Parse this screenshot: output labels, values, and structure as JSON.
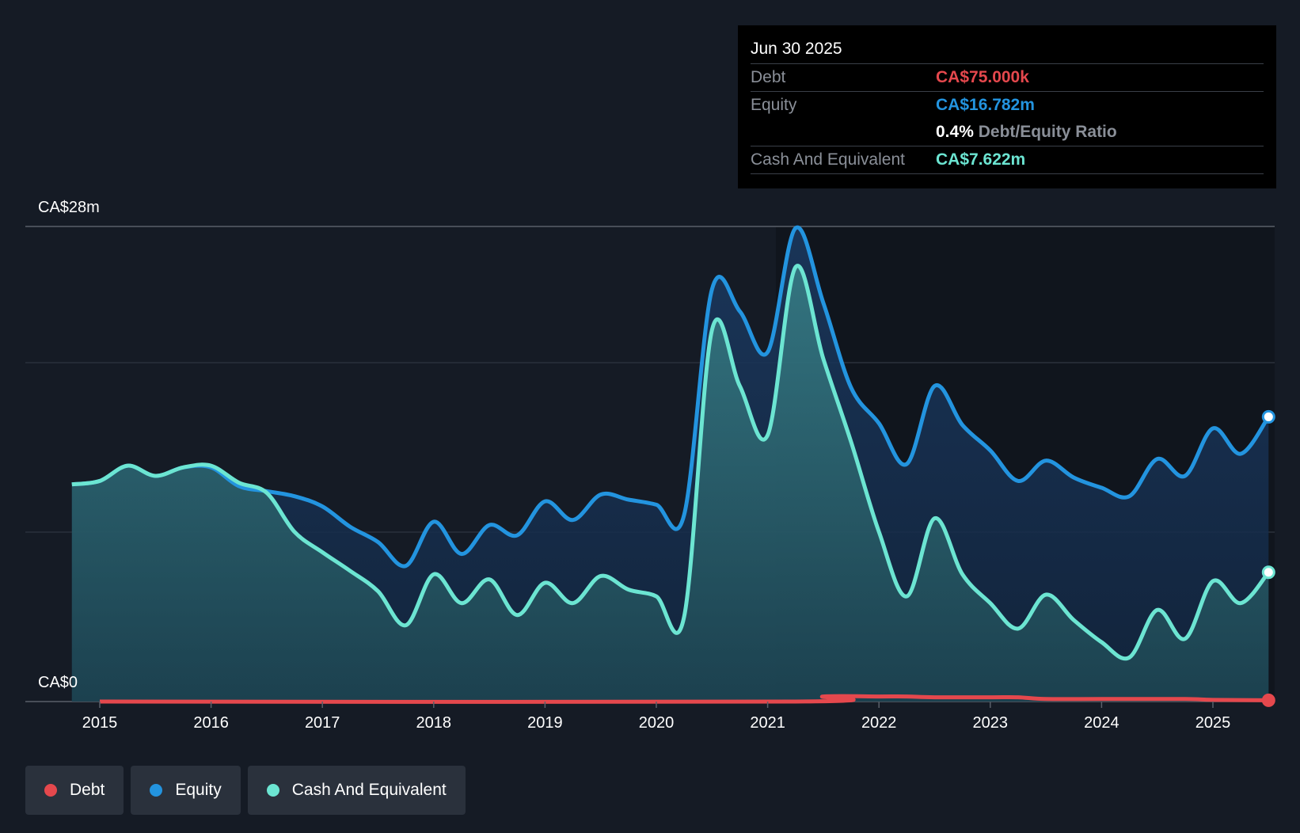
{
  "tooltip": {
    "date": "Jun 30 2025",
    "debt_label": "Debt",
    "debt_value": "CA$75.000k",
    "equity_label": "Equity",
    "equity_value": "CA$16.782m",
    "ratio_value": "0.4%",
    "ratio_label": "Debt/Equity Ratio",
    "cash_label": "Cash And Equivalent",
    "cash_value": "CA$7.622m"
  },
  "legend": [
    {
      "label": "Debt",
      "color": "#e5484d"
    },
    {
      "label": "Equity",
      "color": "#2394df"
    },
    {
      "label": "Cash And Equivalent",
      "color": "#6ce5d2"
    }
  ],
  "chart_data": {
    "type": "area",
    "title": "",
    "ylabel_top": "CA$28m",
    "ylabel_bottom": "CA$0",
    "ylim": [
      0,
      28
    ],
    "xlim": [
      2014.75,
      2025.5
    ],
    "x_ticks": [
      "2015",
      "2016",
      "2017",
      "2018",
      "2019",
      "2020",
      "2021",
      "2022",
      "2023",
      "2024",
      "2025"
    ],
    "colors": {
      "debt": "#e5484d",
      "equity": "#2394df",
      "cash": "#6ce5d2"
    },
    "series": [
      {
        "name": "Equity",
        "key": "equity",
        "points": [
          [
            2014.75,
            12.8
          ],
          [
            2015.0,
            13.0
          ],
          [
            2015.25,
            13.9
          ],
          [
            2015.5,
            13.3
          ],
          [
            2015.75,
            13.8
          ],
          [
            2016.0,
            13.8
          ],
          [
            2016.25,
            12.7
          ],
          [
            2016.5,
            12.4
          ],
          [
            2016.75,
            12.1
          ],
          [
            2017.0,
            11.5
          ],
          [
            2017.25,
            10.3
          ],
          [
            2017.5,
            9.4
          ],
          [
            2017.75,
            8.0
          ],
          [
            2018.0,
            10.6
          ],
          [
            2018.25,
            8.7
          ],
          [
            2018.5,
            10.4
          ],
          [
            2018.75,
            9.8
          ],
          [
            2019.0,
            11.8
          ],
          [
            2019.25,
            10.7
          ],
          [
            2019.5,
            12.2
          ],
          [
            2019.75,
            11.9
          ],
          [
            2020.0,
            11.6
          ],
          [
            2020.25,
            11.0
          ],
          [
            2020.5,
            24.3
          ],
          [
            2020.75,
            23.0
          ],
          [
            2021.0,
            20.6
          ],
          [
            2021.25,
            27.9
          ],
          [
            2021.5,
            23.5
          ],
          [
            2021.75,
            18.5
          ],
          [
            2022.0,
            16.4
          ],
          [
            2022.25,
            14.0
          ],
          [
            2022.5,
            18.6
          ],
          [
            2022.75,
            16.3
          ],
          [
            2023.0,
            14.8
          ],
          [
            2023.25,
            13.0
          ],
          [
            2023.5,
            14.2
          ],
          [
            2023.75,
            13.2
          ],
          [
            2024.0,
            12.6
          ],
          [
            2024.25,
            12.1
          ],
          [
            2024.5,
            14.3
          ],
          [
            2024.75,
            13.3
          ],
          [
            2025.0,
            16.1
          ],
          [
            2025.25,
            14.6
          ],
          [
            2025.5,
            16.78
          ]
        ]
      },
      {
        "name": "Cash And Equivalent",
        "key": "cash",
        "points": [
          [
            2014.75,
            12.8
          ],
          [
            2015.0,
            13.0
          ],
          [
            2015.25,
            13.9
          ],
          [
            2015.5,
            13.3
          ],
          [
            2015.75,
            13.8
          ],
          [
            2016.0,
            13.9
          ],
          [
            2016.25,
            12.9
          ],
          [
            2016.5,
            12.3
          ],
          [
            2016.75,
            10.0
          ],
          [
            2017.0,
            8.8
          ],
          [
            2017.25,
            7.7
          ],
          [
            2017.5,
            6.5
          ],
          [
            2017.75,
            4.5
          ],
          [
            2018.0,
            7.5
          ],
          [
            2018.25,
            5.8
          ],
          [
            2018.5,
            7.2
          ],
          [
            2018.75,
            5.1
          ],
          [
            2019.0,
            7.0
          ],
          [
            2019.25,
            5.8
          ],
          [
            2019.5,
            7.4
          ],
          [
            2019.75,
            6.6
          ],
          [
            2020.0,
            6.2
          ],
          [
            2020.25,
            5.0
          ],
          [
            2020.5,
            21.9
          ],
          [
            2020.75,
            18.6
          ],
          [
            2021.0,
            15.7
          ],
          [
            2021.25,
            25.6
          ],
          [
            2021.5,
            20.2
          ],
          [
            2021.75,
            15.3
          ],
          [
            2022.0,
            10.0
          ],
          [
            2022.25,
            6.2
          ],
          [
            2022.5,
            10.8
          ],
          [
            2022.75,
            7.5
          ],
          [
            2023.0,
            5.8
          ],
          [
            2023.25,
            4.3
          ],
          [
            2023.5,
            6.3
          ],
          [
            2023.75,
            4.8
          ],
          [
            2024.0,
            3.5
          ],
          [
            2024.25,
            2.6
          ],
          [
            2024.5,
            5.4
          ],
          [
            2024.75,
            3.7
          ],
          [
            2025.0,
            7.1
          ],
          [
            2025.25,
            5.8
          ],
          [
            2025.5,
            7.62
          ]
        ]
      },
      {
        "name": "Debt",
        "key": "debt",
        "points": [
          [
            2015.0,
            0.0
          ],
          [
            2021.25,
            0.0
          ],
          [
            2021.5,
            0.3
          ],
          [
            2022.0,
            0.3
          ],
          [
            2022.25,
            0.3
          ],
          [
            2022.5,
            0.25
          ],
          [
            2023.0,
            0.25
          ],
          [
            2023.25,
            0.25
          ],
          [
            2023.5,
            0.15
          ],
          [
            2024.0,
            0.15
          ],
          [
            2024.75,
            0.15
          ],
          [
            2025.0,
            0.1
          ],
          [
            2025.5,
            0.075
          ]
        ]
      }
    ]
  }
}
